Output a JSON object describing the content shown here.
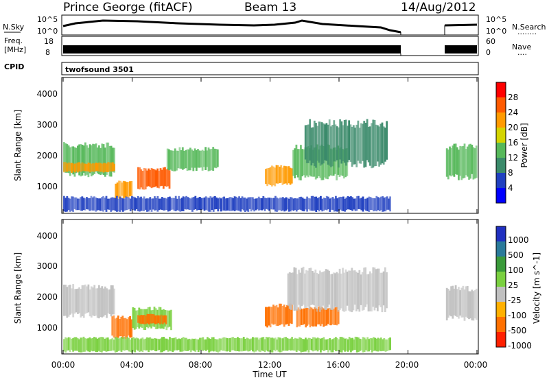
{
  "header": {
    "station": "Prince George (fitACF)",
    "beam": "Beam 13",
    "date": "14/Aug/2012"
  },
  "top_panels": {
    "nsky_label": "N.Sky",
    "nsearch_label": "N.Search",
    "nsearch_dots": "........",
    "nsky_ticks": [
      "10^5",
      "10^0"
    ],
    "nsearch_ticks": [
      "10^5",
      "10^0"
    ],
    "freq_label_1": "Freq.",
    "freq_label_2": "[MHz]",
    "freq_ticks": [
      "18",
      "8"
    ],
    "nave_label": "Nave",
    "nave_dots": "....",
    "nave_ticks": [
      "60",
      "0"
    ],
    "cpid_label": "CPID",
    "cpid_value": "twofsound 3501"
  },
  "x_axis": {
    "label": "Time UT",
    "tick_labels": [
      "00:00",
      "04:00",
      "08:00",
      "12:00",
      "16:00",
      "20:00",
      "00:00"
    ]
  },
  "power_panel": {
    "ylabel": "Slant Range [km]",
    "yticks": [
      "1000",
      "2000",
      "3000",
      "4000"
    ],
    "colorbar_label": "Power [dB]",
    "colorbar_ticks": [
      "4",
      "8",
      "12",
      "16",
      "20",
      "24",
      "28"
    ],
    "colors": [
      "#0000ff",
      "#2040c0",
      "#3a8a6a",
      "#56b85a",
      "#d4d400",
      "#ff9a00",
      "#ff5a00",
      "#ff0000"
    ]
  },
  "velocity_panel": {
    "ylabel": "Slant Range [km]",
    "yticks": [
      "1000",
      "2000",
      "3000",
      "4000"
    ],
    "colorbar_label": "Velocity [m s^-1]",
    "colorbar_ticks": [
      "1000",
      "500",
      "100",
      "25",
      "-25",
      "-100",
      "-500",
      "-1000"
    ],
    "colors": [
      "#2030c0",
      "#2a7a9a",
      "#3a9a3a",
      "#7ad040",
      "#c0c0c0",
      "#ffb000",
      "#ff7000",
      "#ff2000"
    ]
  },
  "chart_data": {
    "type": "heatmap",
    "x_range_hours": [
      0,
      24
    ],
    "y_range_km": [
      180,
      4500
    ],
    "data_gap_hours": [
      19.0,
      22.2
    ],
    "power_bands": [
      {
        "t0": 0.0,
        "t1": 3.0,
        "r0": 1300,
        "r1": 2450,
        "value_db": 14
      },
      {
        "t0": 0.0,
        "t1": 3.0,
        "r0": 1450,
        "r1": 1800,
        "value_db": 20
      },
      {
        "t0": 3.0,
        "t1": 4.0,
        "r0": 600,
        "r1": 1200,
        "value_db": 22
      },
      {
        "t0": 4.3,
        "t1": 6.2,
        "r0": 900,
        "r1": 1650,
        "value_db": 26
      },
      {
        "t0": 6.0,
        "t1": 9.0,
        "r0": 1500,
        "r1": 2300,
        "value_db": 12
      },
      {
        "t0": 11.7,
        "t1": 13.3,
        "r0": 1000,
        "r1": 1700,
        "value_db": 20
      },
      {
        "t0": 13.3,
        "t1": 16.5,
        "r0": 1200,
        "r1": 2400,
        "value_db": 14
      },
      {
        "t0": 14.0,
        "t1": 18.8,
        "r0": 1600,
        "r1": 3200,
        "value_db": 10
      },
      {
        "t0": 22.2,
        "t1": 24.0,
        "r0": 1200,
        "r1": 2400,
        "value_db": 12
      },
      {
        "t0": 0.0,
        "t1": 19.0,
        "r0": 180,
        "r1": 700,
        "value_db": 6
      }
    ],
    "velocity_bands": [
      {
        "t0": 0.0,
        "t1": 3.0,
        "r0": 1300,
        "r1": 2450,
        "value_ms": 0
      },
      {
        "t0": 2.8,
        "t1": 4.0,
        "r0": 600,
        "r1": 1400,
        "value_ms": -200
      },
      {
        "t0": 4.0,
        "t1": 6.3,
        "r0": 900,
        "r1": 1700,
        "value_ms": 50
      },
      {
        "t0": 4.3,
        "t1": 6.0,
        "r0": 1100,
        "r1": 1450,
        "value_ms": -200
      },
      {
        "t0": 11.7,
        "t1": 13.3,
        "r0": 1000,
        "r1": 1800,
        "value_ms": -300
      },
      {
        "t0": 13.5,
        "t1": 16.0,
        "r0": 1000,
        "r1": 1700,
        "value_ms": -300
      },
      {
        "t0": 13.0,
        "t1": 18.8,
        "r0": 1500,
        "r1": 3000,
        "value_ms": 0
      },
      {
        "t0": 22.2,
        "t1": 24.0,
        "r0": 1200,
        "r1": 2400,
        "value_ms": 0
      },
      {
        "t0": 0.0,
        "t1": 19.0,
        "r0": 180,
        "r1": 700,
        "value_ms": 50
      }
    ]
  }
}
